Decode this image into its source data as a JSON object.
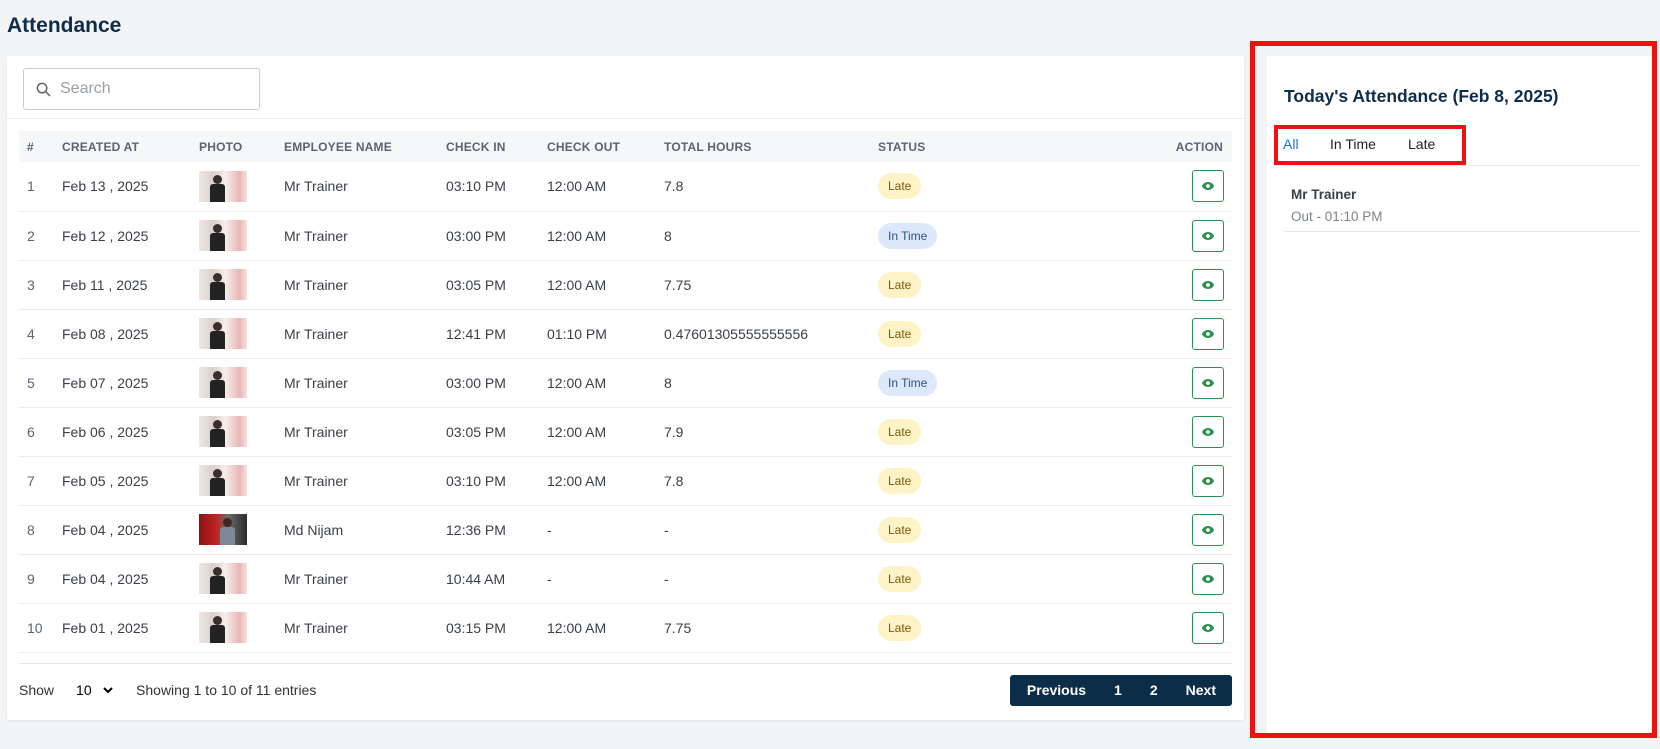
{
  "page": {
    "title": "Attendance"
  },
  "search": {
    "placeholder": "Search",
    "value": ""
  },
  "table": {
    "headers": [
      "#",
      "CREATED AT",
      "PHOTO",
      "EMPLOYEE NAME",
      "CHECK IN",
      "CHECK OUT",
      "TOTAL HOURS",
      "STATUS",
      "ACTION"
    ],
    "rows": [
      {
        "no": "1",
        "created": "Feb 13 , 2025",
        "name": "Mr Trainer",
        "check_in": "03:10 PM",
        "check_out": "12:00 AM",
        "total": "7.8",
        "status": "Late"
      },
      {
        "no": "2",
        "created": "Feb 12 , 2025",
        "name": "Mr Trainer",
        "check_in": "03:00 PM",
        "check_out": "12:00 AM",
        "total": "8",
        "status": "In Time"
      },
      {
        "no": "3",
        "created": "Feb 11 , 2025",
        "name": "Mr Trainer",
        "check_in": "03:05 PM",
        "check_out": "12:00 AM",
        "total": "7.75",
        "status": "Late"
      },
      {
        "no": "4",
        "created": "Feb 08 , 2025",
        "name": "Mr Trainer",
        "check_in": "12:41 PM",
        "check_out": "01:10 PM",
        "total": "0.47601305555555556",
        "status": "Late"
      },
      {
        "no": "5",
        "created": "Feb 07 , 2025",
        "name": "Mr Trainer",
        "check_in": "03:00 PM",
        "check_out": "12:00 AM",
        "total": "8",
        "status": "In Time"
      },
      {
        "no": "6",
        "created": "Feb 06 , 2025",
        "name": "Mr Trainer",
        "check_in": "03:05 PM",
        "check_out": "12:00 AM",
        "total": "7.9",
        "status": "Late"
      },
      {
        "no": "7",
        "created": "Feb 05 , 2025",
        "name": "Mr Trainer",
        "check_in": "03:10 PM",
        "check_out": "12:00 AM",
        "total": "7.8",
        "status": "Late"
      },
      {
        "no": "8",
        "created": "Feb 04 , 2025",
        "name": "Md Nijam",
        "check_in": "12:36 PM",
        "check_out": "-",
        "total": "-",
        "status": "Late"
      },
      {
        "no": "9",
        "created": "Feb 04 , 2025",
        "name": "Mr Trainer",
        "check_in": "10:44 AM",
        "check_out": "-",
        "total": "-",
        "status": "Late"
      },
      {
        "no": "10",
        "created": "Feb 01 , 2025",
        "name": "Mr Trainer",
        "check_in": "03:15 PM",
        "check_out": "12:00 AM",
        "total": "7.75",
        "status": "Late"
      }
    ]
  },
  "footer": {
    "show_label": "Show",
    "page_size": "10",
    "page_size_options": [
      "10"
    ],
    "info": "Showing 1 to 10 of 11 entries",
    "pagination": {
      "previous": "Previous",
      "pages": [
        "1",
        "2"
      ],
      "next": "Next"
    }
  },
  "today": {
    "title": "Today's Attendance (Feb 8, 2025)",
    "tabs": [
      {
        "label": "All",
        "active": true
      },
      {
        "label": "In Time",
        "active": false
      },
      {
        "label": "Late",
        "active": false
      }
    ],
    "items": [
      {
        "name": "Mr Trainer",
        "detail": "Out - 01:10 PM"
      }
    ]
  },
  "colors": {
    "brand_dark": "#0c2d48",
    "highlight": "#ee1111",
    "action_green": "#2f8f4e",
    "late_badge": "#fdf3c7",
    "intime_badge": "#dde9fb",
    "active_tab": "#1a73e8"
  },
  "icons": {
    "search": "search-icon",
    "view": "eye-icon",
    "dropdown": "chevron-down-icon"
  }
}
